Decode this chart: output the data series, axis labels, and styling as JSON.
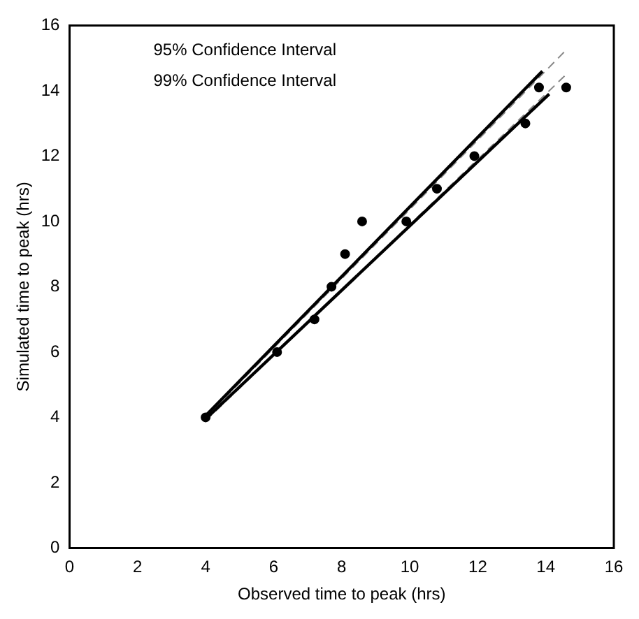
{
  "chart_data": {
    "type": "scatter",
    "xlabel": "Observed time to peak (hrs)",
    "ylabel": "Simulated time to peak (hrs)",
    "xlim": [
      0,
      16
    ],
    "ylim": [
      0,
      16
    ],
    "xticks": [
      0,
      2,
      4,
      6,
      8,
      10,
      12,
      14,
      16
    ],
    "yticks": [
      0,
      2,
      4,
      6,
      8,
      10,
      12,
      14,
      16
    ],
    "grid": false,
    "legend": false,
    "annotations": [
      "95% Confidence Interval",
      "99% Confidence Interval"
    ],
    "series": [
      {
        "color": "#000000",
        "marker": "circle",
        "x": [
          4,
          6.1,
          7.2,
          7.7,
          8.1,
          8.6,
          9.9,
          10.8,
          11.9,
          13.4,
          13.8,
          14.6
        ],
        "values": [
          4,
          6,
          7,
          8,
          9,
          10,
          10,
          11,
          12,
          13,
          14.1,
          14.1
        ]
      },
      {
        "type": "line",
        "color": "#000000",
        "line_style": "solid",
        "marker": "none",
        "x": [
          4,
          13.9
        ],
        "values": [
          4.05,
          14.6
        ]
      },
      {
        "type": "line",
        "color": "#000000",
        "line_style": "solid",
        "marker": "none",
        "x": [
          4,
          14.1
        ],
        "values": [
          3.95,
          13.9
        ]
      },
      {
        "type": "line",
        "color": "#888888",
        "line_style": "dashed",
        "marker": "none",
        "x": [
          4,
          14.6
        ],
        "values": [
          4,
          15.25
        ]
      },
      {
        "type": "line",
        "color": "#888888",
        "line_style": "dashed",
        "marker": "none",
        "x": [
          4,
          14.6
        ],
        "values": [
          3.9,
          14.5
        ]
      }
    ]
  }
}
